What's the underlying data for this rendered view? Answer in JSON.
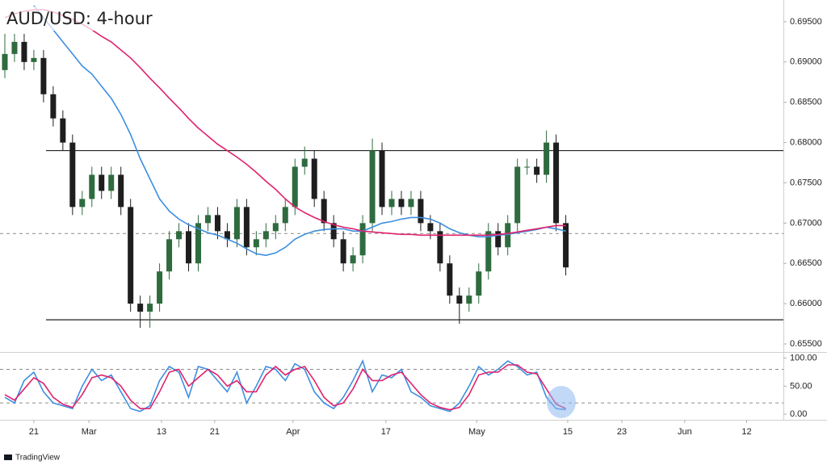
{
  "chart_data": [
    {
      "type": "candlestick",
      "title": "AUD/USD: 4-hour",
      "up_color": "#2e6b3e",
      "down_color": "#1e1e1e",
      "x": [
        0,
        1,
        2,
        3,
        4,
        5,
        6,
        7,
        8,
        9,
        10,
        11,
        12,
        13,
        14,
        15,
        16,
        17,
        18,
        19,
        20,
        21,
        22,
        23,
        24,
        25,
        26,
        27,
        28,
        29,
        30,
        31,
        32,
        33,
        34,
        35,
        36,
        37,
        38,
        39,
        40,
        41,
        42,
        43,
        44,
        45,
        46,
        47,
        48,
        49,
        50,
        51,
        52,
        53,
        54,
        55,
        56,
        57,
        58
      ],
      "open": [
        0.689,
        0.691,
        0.6925,
        0.69,
        0.6905,
        0.686,
        0.683,
        0.68,
        0.672,
        0.673,
        0.676,
        0.674,
        0.676,
        0.672,
        0.66,
        0.659,
        0.66,
        0.664,
        0.668,
        0.669,
        0.665,
        0.67,
        0.671,
        0.669,
        0.668,
        0.672,
        0.667,
        0.668,
        0.669,
        0.67,
        0.672,
        0.677,
        0.678,
        0.673,
        0.67,
        0.668,
        0.665,
        0.666,
        0.67,
        0.679,
        0.672,
        0.673,
        0.672,
        0.673,
        0.67,
        0.669,
        0.665,
        0.661,
        0.66,
        0.661,
        0.664,
        0.669,
        0.667,
        0.67,
        0.677,
        0.677,
        0.676,
        0.68,
        0.67
      ],
      "high": [
        0.6935,
        0.6935,
        0.6935,
        0.6915,
        0.6915,
        0.687,
        0.684,
        0.681,
        0.674,
        0.677,
        0.677,
        0.677,
        0.677,
        0.673,
        0.661,
        0.661,
        0.665,
        0.669,
        0.67,
        0.67,
        0.671,
        0.672,
        0.672,
        0.67,
        0.673,
        0.673,
        0.669,
        0.67,
        0.671,
        0.673,
        0.678,
        0.6795,
        0.679,
        0.674,
        0.671,
        0.669,
        0.667,
        0.671,
        0.6805,
        0.68,
        0.674,
        0.674,
        0.674,
        0.674,
        0.671,
        0.67,
        0.666,
        0.662,
        0.662,
        0.665,
        0.67,
        0.67,
        0.671,
        0.678,
        0.678,
        0.678,
        0.6815,
        0.681,
        0.671
      ],
      "low": [
        0.688,
        0.69,
        0.689,
        0.689,
        0.685,
        0.682,
        0.679,
        0.671,
        0.671,
        0.672,
        0.673,
        0.673,
        0.671,
        0.659,
        0.657,
        0.657,
        0.659,
        0.663,
        0.667,
        0.664,
        0.664,
        0.669,
        0.668,
        0.667,
        0.667,
        0.666,
        0.666,
        0.667,
        0.668,
        0.669,
        0.671,
        0.676,
        0.672,
        0.669,
        0.667,
        0.664,
        0.664,
        0.665,
        0.669,
        0.671,
        0.671,
        0.671,
        0.671,
        0.669,
        0.668,
        0.664,
        0.66,
        0.6575,
        0.659,
        0.66,
        0.663,
        0.666,
        0.666,
        0.669,
        0.676,
        0.675,
        0.675,
        0.669,
        0.6635
      ],
      "close": [
        0.691,
        0.6925,
        0.69,
        0.6905,
        0.686,
        0.683,
        0.68,
        0.672,
        0.673,
        0.676,
        0.674,
        0.676,
        0.672,
        0.66,
        0.659,
        0.66,
        0.664,
        0.668,
        0.669,
        0.665,
        0.67,
        0.671,
        0.669,
        0.668,
        0.672,
        0.667,
        0.668,
        0.669,
        0.67,
        0.672,
        0.677,
        0.678,
        0.673,
        0.67,
        0.668,
        0.665,
        0.666,
        0.67,
        0.679,
        0.672,
        0.673,
        0.672,
        0.673,
        0.67,
        0.669,
        0.665,
        0.661,
        0.66,
        0.661,
        0.664,
        0.669,
        0.667,
        0.67,
        0.677,
        0.677,
        0.676,
        0.68,
        0.67,
        0.6645
      ],
      "series": [
        {
          "color": "#3d8fe0",
          "values": [
            null,
            null,
            null,
            0.697,
            0.6955,
            0.694,
            0.6925,
            0.691,
            0.6895,
            0.6885,
            0.687,
            0.6855,
            0.6835,
            0.681,
            0.678,
            0.6755,
            0.673,
            0.6715,
            0.6705,
            0.6698,
            0.6693,
            0.6688,
            0.6685,
            0.668,
            0.6675,
            0.6668,
            0.6662,
            0.666,
            0.6663,
            0.667,
            0.668,
            0.6686,
            0.669,
            0.6692,
            0.6693,
            0.6693,
            0.669,
            0.669,
            0.6695,
            0.67,
            0.6702,
            0.6705,
            0.6707,
            0.6707,
            0.6705,
            0.67,
            0.6693,
            0.6688,
            0.6685,
            0.6683,
            0.6683,
            0.6685,
            0.6686,
            0.6688,
            0.669,
            0.6692,
            0.6695,
            0.6693,
            0.669
          ]
        },
        {
          "color": "#e0226e",
          "values": [
            0.6955,
            0.696,
            0.6963,
            0.6965,
            0.6965,
            0.6962,
            0.6958,
            0.6953,
            0.6947,
            0.694,
            0.6932,
            0.6925,
            0.6915,
            0.6905,
            0.6893,
            0.688,
            0.6868,
            0.6855,
            0.6843,
            0.683,
            0.6818,
            0.6808,
            0.6798,
            0.679,
            0.6782,
            0.6773,
            0.6763,
            0.6752,
            0.6742,
            0.673,
            0.672,
            0.6713,
            0.6707,
            0.6702,
            0.6698,
            0.6695,
            0.6693,
            0.669,
            0.6689,
            0.6688,
            0.6687,
            0.6686,
            0.6686,
            0.6685,
            0.6685,
            0.6685,
            0.6685,
            0.6685,
            0.6685,
            0.6685,
            0.6685,
            0.6686,
            0.6687,
            0.6689,
            0.6691,
            0.6693,
            0.6695,
            0.6697,
            0.6697
          ]
        }
      ],
      "hlines": [
        {
          "value": 0.679,
          "style": "solid",
          "color": "#222222"
        },
        {
          "value": 0.658,
          "style": "solid",
          "color": "#222222"
        },
        {
          "value": 0.6687,
          "style": "dashed",
          "color": "#9a9a9a"
        }
      ],
      "xlim": [
        -0.5,
        80.5
      ],
      "ylim": [
        0.654,
        0.6977
      ],
      "yticks": [
        {
          "value": 0.695,
          "label": "0.69500"
        },
        {
          "value": 0.69,
          "label": "0.69000"
        },
        {
          "value": 0.685,
          "label": "0.68500"
        },
        {
          "value": 0.68,
          "label": "0.68000"
        },
        {
          "value": 0.675,
          "label": "0.67500"
        },
        {
          "value": 0.67,
          "label": "0.67000"
        },
        {
          "value": 0.665,
          "label": "0.66500"
        },
        {
          "value": 0.66,
          "label": "0.66000"
        },
        {
          "value": 0.655,
          "label": "0.65500"
        }
      ],
      "grid": false
    },
    {
      "type": "line",
      "x": [
        0,
        1,
        2,
        3,
        4,
        5,
        6,
        7,
        8,
        9,
        10,
        11,
        12,
        13,
        14,
        15,
        16,
        17,
        18,
        19,
        20,
        21,
        22,
        23,
        24,
        25,
        26,
        27,
        28,
        29,
        30,
        31,
        32,
        33,
        34,
        35,
        36,
        37,
        38,
        39,
        40,
        41,
        42,
        43,
        44,
        45,
        46,
        47,
        48,
        49,
        50,
        51,
        52,
        53,
        54,
        55,
        56,
        57,
        58
      ],
      "series": [
        {
          "color": "#3d8fe0",
          "values": [
            30,
            20,
            60,
            75,
            40,
            20,
            15,
            10,
            50,
            80,
            60,
            70,
            40,
            10,
            5,
            15,
            60,
            85,
            75,
            30,
            85,
            80,
            60,
            40,
            75,
            20,
            50,
            85,
            80,
            60,
            90,
            80,
            40,
            20,
            10,
            30,
            60,
            95,
            40,
            70,
            65,
            80,
            40,
            30,
            15,
            10,
            5,
            20,
            50,
            85,
            70,
            80,
            95,
            85,
            70,
            75,
            30,
            10,
            8
          ]
        },
        {
          "color": "#e0226e",
          "values": [
            35,
            25,
            45,
            65,
            55,
            30,
            18,
            12,
            35,
            65,
            70,
            65,
            50,
            25,
            10,
            10,
            40,
            75,
            80,
            50,
            65,
            80,
            70,
            50,
            60,
            40,
            40,
            70,
            85,
            70,
            80,
            85,
            60,
            30,
            15,
            20,
            45,
            80,
            60,
            60,
            70,
            75,
            55,
            35,
            20,
            12,
            8,
            12,
            35,
            70,
            75,
            75,
            88,
            88,
            75,
            72,
            45,
            18,
            10
          ]
        }
      ],
      "levels": [
        80,
        20
      ],
      "xlim": [
        -0.5,
        80.5
      ],
      "ylim": [
        -10,
        111
      ],
      "yticks": [
        {
          "value": 100,
          "label": "100.00"
        },
        {
          "value": 50,
          "label": "50.00"
        },
        {
          "value": 0,
          "label": "0.00"
        }
      ],
      "xticks": [
        {
          "value": 3,
          "label": "21"
        },
        {
          "value": 8.7,
          "label": "Mar"
        },
        {
          "value": 16.2,
          "label": "13"
        },
        {
          "value": 21.7,
          "label": "21"
        },
        {
          "value": 29.8,
          "label": "Apr"
        },
        {
          "value": 39.4,
          "label": "17"
        },
        {
          "value": 48.8,
          "label": "May"
        },
        {
          "value": 58.2,
          "label": "15"
        },
        {
          "value": 63.8,
          "label": "23"
        },
        {
          "value": 70.3,
          "label": "Jun"
        },
        {
          "value": 76.7,
          "label": "12"
        }
      ]
    }
  ],
  "footer": {
    "brand": "TradingView"
  }
}
